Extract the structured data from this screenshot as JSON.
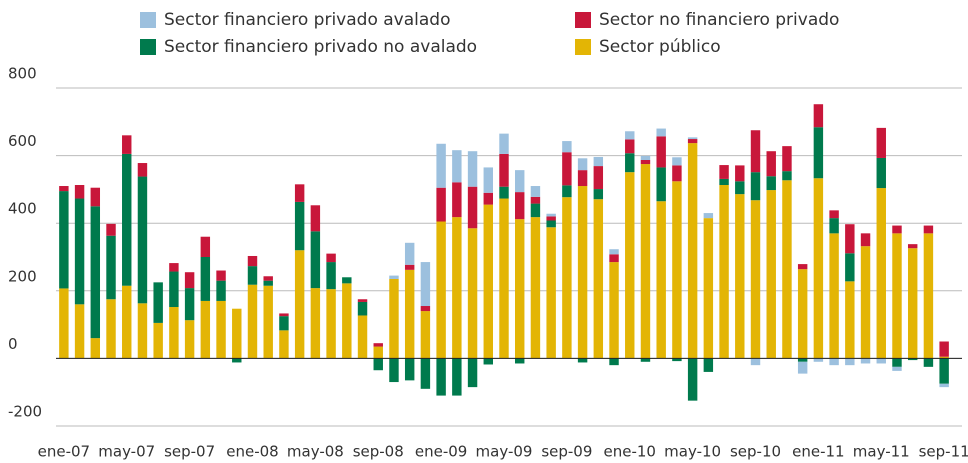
{
  "chart_data": {
    "type": "stacked_bar",
    "categories": [
      "ene-07",
      null,
      null,
      null,
      "may-07",
      null,
      null,
      null,
      "sep-07",
      null,
      null,
      null,
      "ene-08",
      null,
      null,
      null,
      "may-08",
      null,
      null,
      null,
      "sep-08",
      null,
      null,
      null,
      "ene-09",
      null,
      null,
      null,
      "may-09",
      null,
      null,
      null,
      "sep-09",
      null,
      null,
      null,
      "ene-10",
      null,
      null,
      null,
      "may-10",
      null,
      null,
      null,
      "sep-10",
      null,
      null,
      null,
      "ene-11",
      null,
      null,
      null,
      "may-11",
      null,
      null,
      null,
      "sep-11"
    ],
    "series": [
      {
        "name": "Sector financiero privado avalado",
        "color": "#9cc0de",
        "values": [
          0,
          0,
          0,
          0,
          0,
          0,
          0,
          0,
          0,
          0,
          0,
          0,
          0,
          0,
          0,
          0,
          0,
          0,
          0,
          0,
          0,
          10,
          65,
          130,
          130,
          95,
          105,
          75,
          60,
          65,
          32,
          8,
          33,
          35,
          27,
          15,
          24,
          12,
          23,
          24,
          5,
          15,
          0,
          0,
          -20,
          0,
          0,
          -35,
          -10,
          -20,
          -20,
          -15,
          -15,
          -12,
          0,
          0,
          -10
        ]
      },
      {
        "name": "Sector no financiero privado",
        "color": "#c8173a",
        "values": [
          15,
          40,
          55,
          35,
          55,
          40,
          0,
          25,
          47,
          60,
          30,
          0,
          30,
          13,
          8,
          52,
          77,
          25,
          0,
          8,
          10,
          0,
          15,
          15,
          100,
          103,
          123,
          35,
          97,
          80,
          20,
          12,
          98,
          47,
          68,
          23,
          41,
          12,
          92,
          47,
          12,
          0,
          41,
          47,
          124,
          74,
          74,
          15,
          68,
          23,
          86,
          38,
          89,
          23,
          12,
          23,
          45
        ]
      },
      {
        "name": "Sector financiero privado no avalado",
        "color": "#007a4d",
        "values": [
          288,
          313,
          390,
          188,
          390,
          375,
          120,
          105,
          95,
          130,
          60,
          -12,
          55,
          15,
          42,
          143,
          168,
          80,
          18,
          40,
          -35,
          -70,
          -65,
          -90,
          -110,
          -110,
          -85,
          -18,
          35,
          -15,
          40,
          20,
          35,
          -12,
          30,
          -20,
          56,
          -10,
          100,
          -8,
          -125,
          -40,
          18,
          38,
          83,
          41,
          27,
          -10,
          151,
          45,
          83,
          0,
          89,
          -25,
          -5,
          -25,
          -75
        ]
      },
      {
        "name": "Sector público",
        "color": "#e3b505",
        "values": [
          207,
          160,
          60,
          175,
          215,
          163,
          105,
          152,
          113,
          170,
          170,
          147,
          218,
          215,
          83,
          320,
          208,
          205,
          222,
          127,
          35,
          235,
          262,
          140,
          405,
          418,
          385,
          455,
          473,
          412,
          418,
          388,
          477,
          510,
          471,
          285,
          551,
          575,
          465,
          524,
          637,
          415,
          513,
          486,
          468,
          498,
          527,
          264,
          533,
          370,
          228,
          332,
          504,
          370,
          326,
          370,
          5
        ]
      }
    ],
    "ylim": [
      -200,
      800
    ],
    "yticks": [
      -200,
      0,
      200,
      400,
      600,
      800
    ],
    "grid": true
  }
}
